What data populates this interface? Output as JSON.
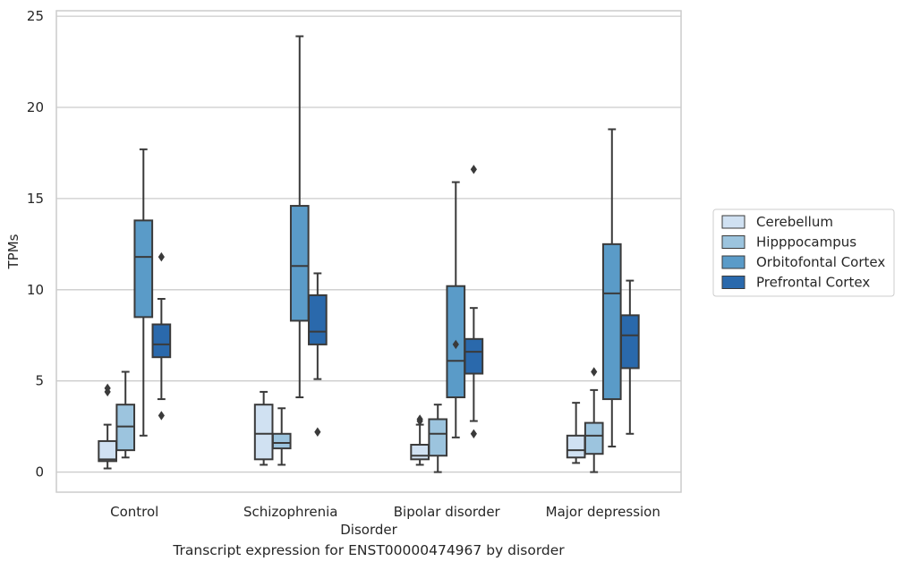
{
  "caption": "Transcript expression for ENST00000474967 by disorder",
  "chart_data": {
    "type": "box",
    "title": "",
    "xlabel": "Disorder",
    "ylabel": "TPMs",
    "ylim": [
      -1.1,
      25.3
    ],
    "yticks": [
      0,
      5,
      10,
      15,
      20,
      25
    ],
    "grid": "horizontal",
    "legend_position": "right",
    "categories": [
      "Control",
      "Schizophrenia",
      "Bipolar disorder",
      "Major depression"
    ],
    "series": [
      {
        "name": "Cerebellum",
        "color": "#d0e1f2",
        "boxes": [
          {
            "whisker_low": 0.2,
            "q1": 0.6,
            "median": 0.7,
            "q3": 1.7,
            "whisker_high": 2.6,
            "outliers": [
              4.4,
              4.6
            ]
          },
          {
            "whisker_low": 0.4,
            "q1": 0.7,
            "median": 2.1,
            "q3": 3.7,
            "whisker_high": 4.4,
            "outliers": []
          },
          {
            "whisker_low": 0.4,
            "q1": 0.7,
            "median": 0.9,
            "q3": 1.5,
            "whisker_high": 2.6,
            "outliers": [
              2.8,
              2.9
            ]
          },
          {
            "whisker_low": 0.5,
            "q1": 0.8,
            "median": 1.2,
            "q3": 2.0,
            "whisker_high": 3.8,
            "outliers": []
          }
        ]
      },
      {
        "name": "Hipppocampus",
        "color": "#9cc4de",
        "boxes": [
          {
            "whisker_low": 0.8,
            "q1": 1.2,
            "median": 2.5,
            "q3": 3.7,
            "whisker_high": 5.5,
            "outliers": []
          },
          {
            "whisker_low": 0.4,
            "q1": 1.3,
            "median": 1.6,
            "q3": 2.1,
            "whisker_high": 3.5,
            "outliers": []
          },
          {
            "whisker_low": 0.0,
            "q1": 0.9,
            "median": 2.1,
            "q3": 2.9,
            "whisker_high": 3.7,
            "outliers": []
          },
          {
            "whisker_low": 0.0,
            "q1": 1.0,
            "median": 2.0,
            "q3": 2.7,
            "whisker_high": 4.5,
            "outliers": [
              5.5
            ]
          }
        ]
      },
      {
        "name": "Orbitofontal Cortex",
        "color": "#5a9bc8",
        "boxes": [
          {
            "whisker_low": 2.0,
            "q1": 8.5,
            "median": 11.8,
            "q3": 13.8,
            "whisker_high": 17.7,
            "outliers": []
          },
          {
            "whisker_low": 4.1,
            "q1": 8.3,
            "median": 11.3,
            "q3": 14.6,
            "whisker_high": 23.9,
            "outliers": []
          },
          {
            "whisker_low": 1.9,
            "q1": 4.1,
            "median": 6.1,
            "q3": 10.2,
            "whisker_high": 15.9,
            "outliers": [
              7.0
            ]
          },
          {
            "whisker_low": 1.4,
            "q1": 4.0,
            "median": 9.8,
            "q3": 12.5,
            "whisker_high": 18.8,
            "outliers": []
          }
        ]
      },
      {
        "name": "Prefrontal Cortex",
        "color": "#2a69ac",
        "boxes": [
          {
            "whisker_low": 4.0,
            "q1": 6.3,
            "median": 7.0,
            "q3": 8.1,
            "whisker_high": 9.5,
            "outliers": [
              11.8,
              3.1
            ]
          },
          {
            "whisker_low": 5.1,
            "q1": 7.0,
            "median": 7.7,
            "q3": 9.7,
            "whisker_high": 10.9,
            "outliers": [
              2.2
            ]
          },
          {
            "whisker_low": 2.8,
            "q1": 5.4,
            "median": 6.6,
            "q3": 7.3,
            "whisker_high": 9.0,
            "outliers": [
              16.6,
              2.1
            ]
          },
          {
            "whisker_low": 2.1,
            "q1": 5.7,
            "median": 7.5,
            "q3": 8.6,
            "whisker_high": 10.5,
            "outliers": []
          }
        ]
      }
    ]
  }
}
